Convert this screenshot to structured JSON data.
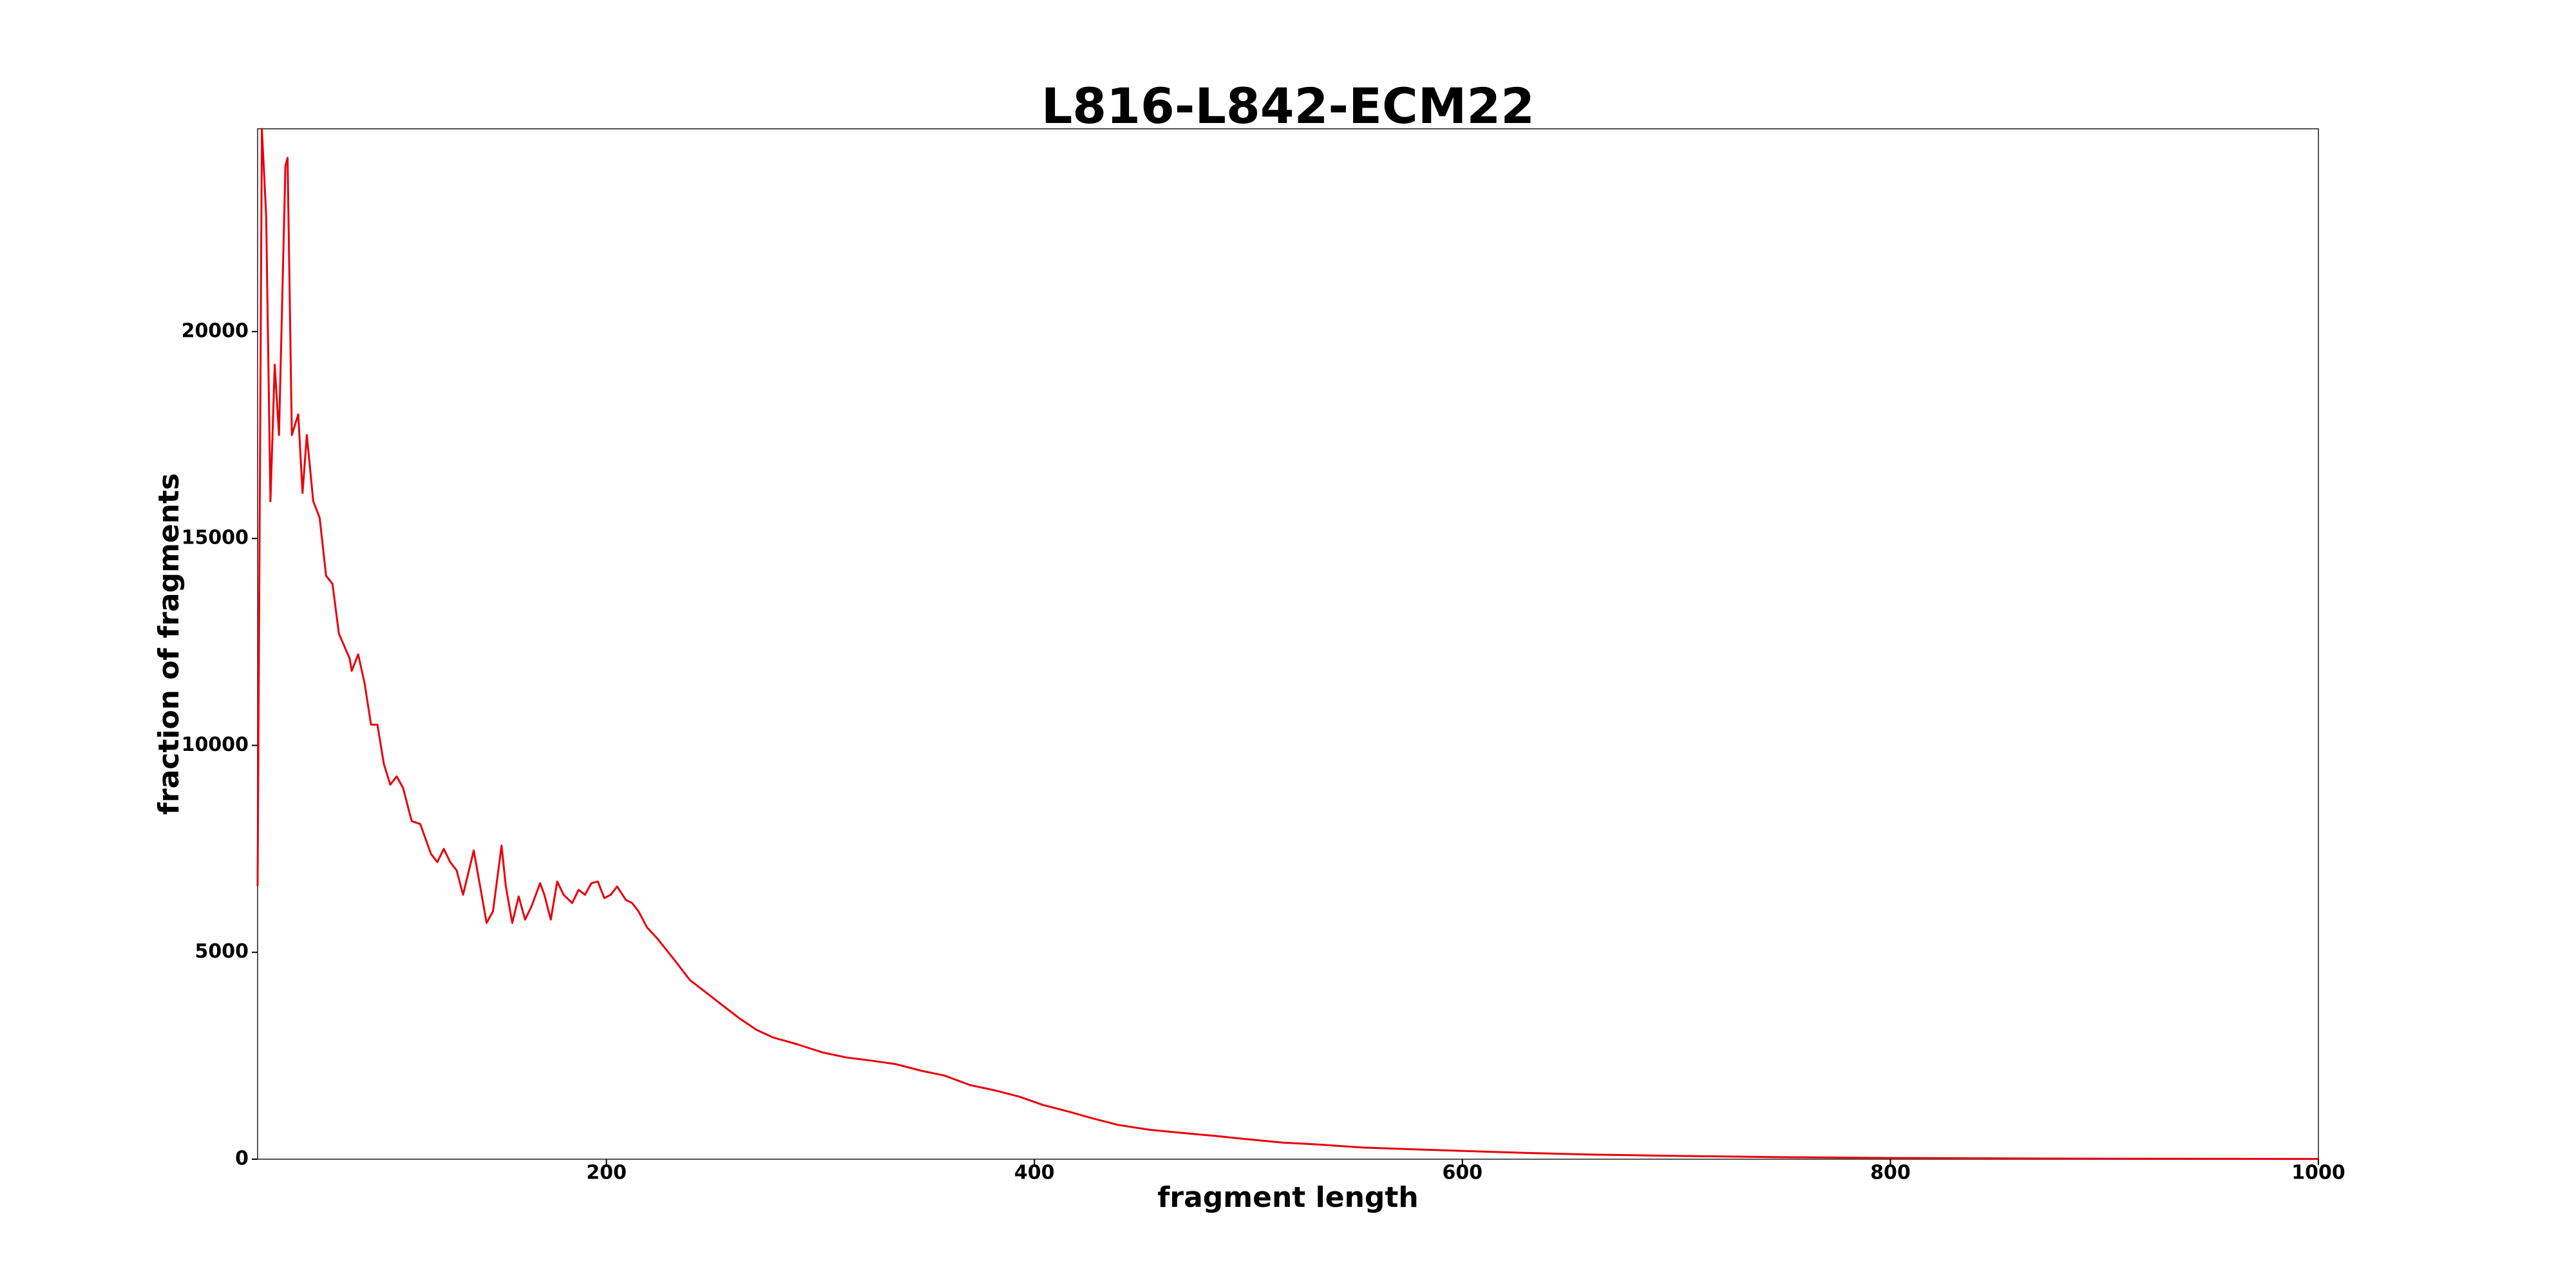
{
  "chart_data": {
    "type": "line",
    "title": "L816-L842-ECM22",
    "xlabel": "fragment length",
    "ylabel": "fraction of fragments",
    "xlim": [
      37,
      1000
    ],
    "ylim": [
      0,
      24900
    ],
    "xticks": [
      200,
      400,
      600,
      800,
      1000
    ],
    "yticks": [
      0,
      5000,
      10000,
      15000,
      20000
    ],
    "grid": false,
    "series": [
      {
        "name": "L816-L842-ECM22",
        "color": "#e8000b",
        "x": [
          37,
          39,
          41,
          43,
          45,
          47,
          50,
          51,
          53,
          56,
          58,
          60,
          63,
          66,
          69,
          72,
          75,
          80,
          81,
          84,
          87,
          90,
          93,
          96,
          99,
          102,
          105,
          109,
          113,
          118,
          121,
          124,
          127,
          130,
          133,
          138,
          141,
          144,
          147,
          151,
          153,
          156,
          159,
          162,
          165,
          169,
          171,
          174,
          177,
          180,
          184,
          187,
          190,
          193,
          196,
          199,
          202,
          205,
          209,
          212,
          215,
          219,
          224,
          232,
          239,
          247,
          255,
          262,
          270,
          278,
          289,
          301,
          312,
          324,
          335,
          347,
          358,
          370,
          381,
          393,
          404,
          416,
          427,
          439,
          454,
          470,
          485,
          500,
          516,
          531,
          554,
          577,
          600,
          631,
          661,
          700,
          746,
          800,
          877,
          1000
        ],
        "values": [
          6600,
          24900,
          22800,
          15900,
          19200,
          17500,
          24000,
          24200,
          17500,
          18000,
          16100,
          17500,
          15900,
          15500,
          14100,
          13900,
          12700,
          12100,
          11800,
          12200,
          11500,
          10500,
          10500,
          9550,
          9050,
          9250,
          8970,
          8170,
          8100,
          7380,
          7180,
          7500,
          7180,
          6980,
          6390,
          7460,
          6590,
          5710,
          5990,
          7580,
          6590,
          5710,
          6350,
          5790,
          6110,
          6670,
          6390,
          5790,
          6710,
          6390,
          6190,
          6510,
          6390,
          6670,
          6710,
          6310,
          6390,
          6590,
          6270,
          6190,
          5990,
          5600,
          5320,
          4800,
          4330,
          4010,
          3690,
          3410,
          3130,
          2940,
          2780,
          2580,
          2460,
          2380,
          2300,
          2140,
          2020,
          1790,
          1670,
          1510,
          1310,
          1150,
          990,
          830,
          710,
          630,
          560,
          480,
          400,
          360,
          280,
          240,
          200,
          150,
          110,
          80,
          50,
          30,
          15,
          5
        ]
      }
    ]
  }
}
